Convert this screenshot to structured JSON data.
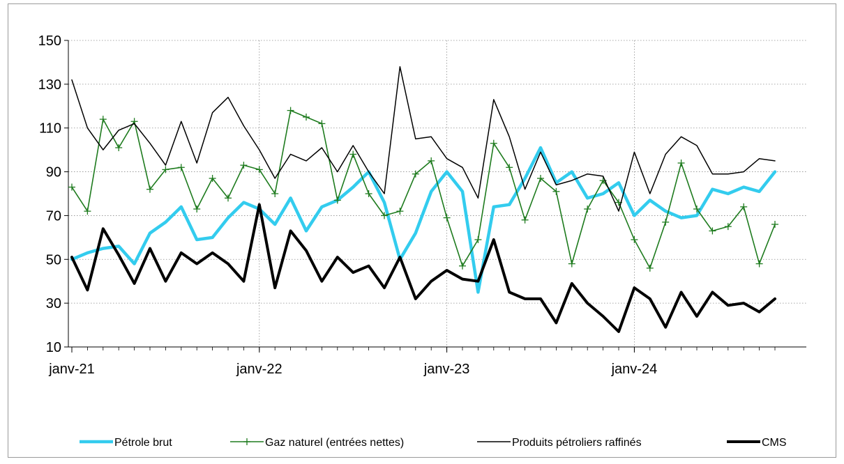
{
  "chart_data": {
    "type": "line",
    "title": "",
    "xlabel": "",
    "ylabel": "",
    "ylim": [
      10,
      150
    ],
    "yticks": [
      10,
      30,
      50,
      70,
      90,
      110,
      130,
      150
    ],
    "x_tick_labels": [
      {
        "index": 0,
        "label": "janv-21"
      },
      {
        "index": 12,
        "label": "janv-22"
      },
      {
        "index": 24,
        "label": "janv-23"
      },
      {
        "index": 36,
        "label": "janv-24"
      }
    ],
    "grid": {
      "vertical": true,
      "horizontal": true,
      "style": "dotted"
    },
    "legend_position": "bottom",
    "n_points": 46,
    "series": [
      {
        "name": "Pétrole brut",
        "color": "#33ccee",
        "style": "thick-line",
        "values": [
          50,
          53,
          55,
          56,
          48,
          62,
          67,
          74,
          59,
          60,
          69,
          76,
          73,
          66,
          78,
          63,
          74,
          77,
          83,
          90,
          76,
          50,
          62,
          81,
          90,
          81,
          35,
          74,
          75,
          87,
          101,
          85,
          90,
          78,
          80,
          85,
          70,
          77,
          72,
          69,
          70,
          82,
          80,
          83,
          81,
          90
        ]
      },
      {
        "name": "Gaz naturel (entrées nettes)",
        "color": "#1e7b1e",
        "style": "line-plus-markers",
        "values": [
          83,
          72,
          114,
          101,
          113,
          82,
          91,
          92,
          73,
          87,
          78,
          93,
          91,
          80,
          118,
          115,
          112,
          77,
          98,
          80,
          70,
          72,
          89,
          95,
          69,
          47,
          59,
          103,
          92,
          68,
          87,
          81,
          48,
          73,
          86,
          76,
          59,
          46,
          67,
          94,
          73,
          63,
          65,
          74,
          48,
          66
        ]
      },
      {
        "name": "Produits pétroliers raffinés",
        "color": "#000000",
        "style": "thin-line",
        "values": [
          132,
          110,
          100,
          109,
          112,
          103,
          93,
          113,
          94,
          117,
          124,
          111,
          100,
          87,
          98,
          95,
          101,
          90,
          102,
          90,
          80,
          138,
          105,
          106,
          96,
          92,
          78,
          123,
          106,
          82,
          99,
          84,
          86,
          89,
          88,
          72,
          99,
          80,
          98,
          106,
          102,
          89,
          89,
          90,
          96,
          95
        ]
      },
      {
        "name": "CMS",
        "color": "#000000",
        "style": "thick-line",
        "values": [
          51,
          36,
          64,
          52,
          39,
          55,
          40,
          53,
          48,
          53,
          48,
          40,
          75,
          37,
          63,
          54,
          40,
          51,
          44,
          47,
          37,
          51,
          32,
          40,
          45,
          41,
          40,
          59,
          35,
          32,
          32,
          21,
          39,
          30,
          24,
          17,
          37,
          32,
          19,
          35,
          24,
          35,
          29,
          30,
          26,
          32
        ]
      }
    ]
  }
}
